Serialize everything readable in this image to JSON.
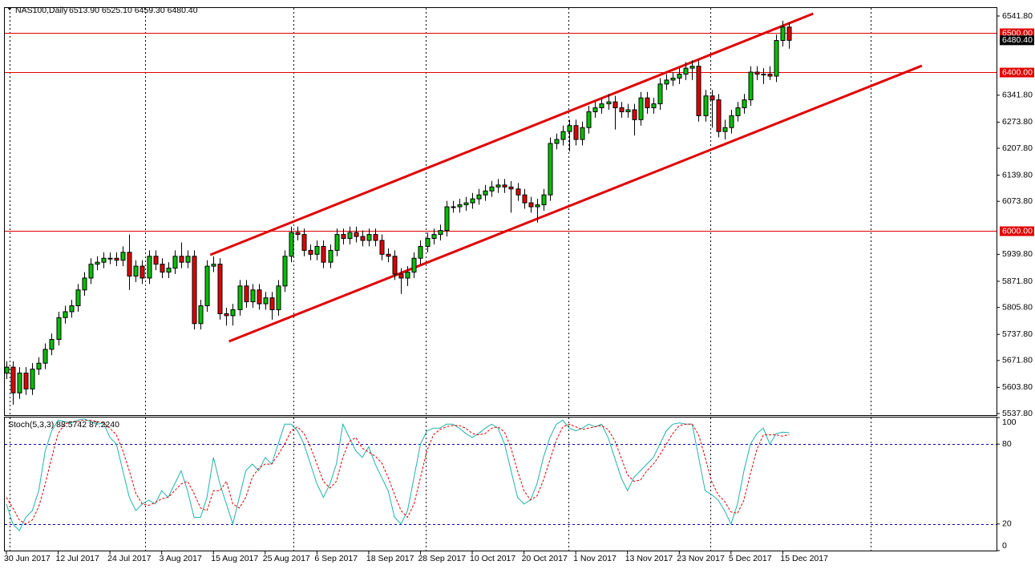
{
  "chart_data": [
    {
      "type": "candlestick",
      "symbol": "NAS100,Daily",
      "ohlc_label": "6513.90 6525.10 6459.30 6480.40",
      "up_color": "#00c000",
      "down_color": "#e00000",
      "categories": [
        "30 Jun 2017",
        null,
        null,
        null,
        null,
        null,
        null,
        null,
        "12 Jul 2017",
        null,
        null,
        null,
        null,
        null,
        null,
        null,
        "24 Jul 2017",
        null,
        null,
        null,
        null,
        null,
        null,
        null,
        "3 Aug 2017",
        null,
        null,
        null,
        null,
        null,
        null,
        null,
        "15 Aug 2017",
        null,
        null,
        null,
        null,
        null,
        null,
        null,
        "25 Aug 2017",
        null,
        null,
        null,
        null,
        null,
        null,
        null,
        "6 Sep 2017",
        null,
        null,
        null,
        null,
        null,
        null,
        null,
        "18 Sep 2017",
        null,
        null,
        null,
        null,
        null,
        null,
        null,
        "28 Sep 2017",
        null,
        null,
        null,
        null,
        null,
        null,
        null,
        "10 Oct 2017",
        null,
        null,
        null,
        null,
        null,
        null,
        null,
        "20 Oct 2017",
        null,
        null,
        null,
        null,
        null,
        null,
        null,
        "1 Nov 2017",
        null,
        null,
        null,
        null,
        null,
        null,
        null,
        "13 Nov 2017",
        null,
        null,
        null,
        null,
        null,
        null,
        null,
        "23 Nov 2017",
        null,
        null,
        null,
        null,
        null,
        null,
        null,
        "5 Dec 2017",
        null,
        null,
        null,
        null,
        null,
        null,
        null,
        "15 Dec 2017",
        null
      ],
      "open": [
        5640,
        5655,
        5590,
        5640,
        5600,
        5650,
        5665,
        5700,
        5725,
        5780,
        5795,
        5810,
        5850,
        5880,
        5915,
        5920,
        5930,
        5930,
        5925,
        5945,
        5885,
        5910,
        5880,
        5935,
        5915,
        5895,
        5905,
        5935,
        5920,
        5935,
        5765,
        5810,
        5910,
        5915,
        5790,
        5785,
        5800,
        5860,
        5820,
        5850,
        5815,
        5830,
        5800,
        5860,
        5935,
        5995,
        5990,
        5950,
        5940,
        5960,
        5920,
        5950,
        5990,
        5980,
        5995,
        5985,
        5975,
        5990,
        5975,
        5940,
        5935,
        5890,
        5880,
        5895,
        5930,
        5960,
        5980,
        5990,
        6000,
        6060,
        6060,
        6065,
        6070,
        6080,
        6090,
        6100,
        6110,
        6115,
        6110,
        6105,
        6090,
        6070,
        6060,
        6065,
        6090,
        6220,
        6230,
        6250,
        6265,
        6230,
        6260,
        6300,
        6310,
        6320,
        6325,
        6310,
        6300,
        6305,
        6280,
        6335,
        6310,
        6320,
        6370,
        6380,
        6385,
        6395,
        6410,
        6415,
        6290,
        6340,
        6330,
        6250,
        6260,
        6290,
        6310,
        6330,
        6400,
        6395,
        6395,
        6390,
        6480,
        6513.9
      ],
      "high": [
        5670,
        5670,
        5655,
        5655,
        5665,
        5680,
        5715,
        5740,
        5795,
        5810,
        5825,
        5865,
        5895,
        5930,
        5935,
        5945,
        5945,
        5945,
        5960,
        5990,
        5925,
        5925,
        5950,
        5950,
        5930,
        5920,
        5950,
        5970,
        5950,
        5950,
        5825,
        5925,
        5935,
        5930,
        5805,
        5815,
        5875,
        5875,
        5865,
        5865,
        5845,
        5845,
        5875,
        5950,
        6010,
        6010,
        6005,
        5965,
        5975,
        5975,
        5965,
        6005,
        6005,
        6010,
        6010,
        6000,
        6005,
        6005,
        5990,
        5955,
        5950,
        5905,
        5910,
        5945,
        5975,
        5995,
        6005,
        6015,
        6075,
        6075,
        6080,
        6085,
        6095,
        6105,
        6115,
        6125,
        6130,
        6130,
        6125,
        6120,
        6105,
        6085,
        6080,
        6105,
        6235,
        6245,
        6265,
        6280,
        6280,
        6275,
        6315,
        6325,
        6335,
        6345,
        6340,
        6325,
        6320,
        6320,
        6350,
        6350,
        6335,
        6385,
        6395,
        6400,
        6410,
        6425,
        6430,
        6430,
        6355,
        6355,
        6345,
        6280,
        6305,
        6325,
        6345,
        6415,
        6415,
        6410,
        6415,
        6495,
        6530,
        6525.1
      ],
      "low": [
        5625,
        5560,
        5575,
        5585,
        5585,
        5635,
        5650,
        5685,
        5710,
        5765,
        5780,
        5795,
        5835,
        5865,
        5900,
        5905,
        5915,
        5910,
        5910,
        5850,
        5870,
        5865,
        5865,
        5900,
        5880,
        5880,
        5890,
        5905,
        5905,
        5750,
        5750,
        5795,
        5895,
        5775,
        5760,
        5760,
        5785,
        5805,
        5805,
        5800,
        5800,
        5775,
        5785,
        5845,
        5920,
        5975,
        5935,
        5925,
        5925,
        5905,
        5905,
        5935,
        5965,
        5965,
        5970,
        5960,
        5960,
        5960,
        5925,
        5920,
        5875,
        5840,
        5860,
        5880,
        5915,
        5945,
        5965,
        5975,
        5985,
        6045,
        6045,
        6050,
        6055,
        6065,
        6075,
        6085,
        6095,
        6095,
        6045,
        6075,
        6055,
        6045,
        6020,
        6050,
        6075,
        6205,
        6215,
        6200,
        6215,
        6215,
        6245,
        6285,
        6295,
        6305,
        6255,
        6285,
        6285,
        6240,
        6265,
        6295,
        6295,
        6305,
        6355,
        6365,
        6370,
        6380,
        6380,
        6275,
        6275,
        6260,
        6235,
        6230,
        6245,
        6275,
        6295,
        6315,
        6380,
        6370,
        6380,
        6375,
        6465,
        6459.3
      ],
      "close": [
        5655,
        5590,
        5640,
        5600,
        5650,
        5665,
        5700,
        5725,
        5780,
        5795,
        5810,
        5850,
        5880,
        5915,
        5920,
        5930,
        5930,
        5925,
        5945,
        5885,
        5910,
        5880,
        5935,
        5915,
        5895,
        5905,
        5935,
        5920,
        5935,
        5765,
        5810,
        5910,
        5915,
        5790,
        5785,
        5800,
        5860,
        5820,
        5850,
        5815,
        5830,
        5800,
        5860,
        5935,
        5995,
        5990,
        5950,
        5940,
        5960,
        5920,
        5950,
        5990,
        5980,
        5995,
        5985,
        5975,
        5990,
        5975,
        5940,
        5935,
        5890,
        5880,
        5895,
        5930,
        5960,
        5980,
        5990,
        6000,
        6060,
        6060,
        6065,
        6070,
        6080,
        6090,
        6100,
        6110,
        6115,
        6110,
        6105,
        6090,
        6070,
        6060,
        6065,
        6090,
        6220,
        6230,
        6250,
        6265,
        6230,
        6260,
        6300,
        6310,
        6320,
        6325,
        6310,
        6300,
        6305,
        6280,
        6335,
        6310,
        6320,
        6370,
        6380,
        6385,
        6395,
        6410,
        6415,
        6290,
        6340,
        6330,
        6250,
        6260,
        6290,
        6310,
        6330,
        6400,
        6395,
        6395,
        6390,
        6480,
        6514,
        6480.4
      ],
      "last_price_label": "6480.40",
      "ylim": [
        5533.8,
        6562
      ],
      "yticks": [
        {
          "value": 6541.8,
          "label": "6541.80"
        },
        {
          "value": 6341.8,
          "label": "6341.80"
        },
        {
          "value": 6273.8,
          "label": "6273.80"
        },
        {
          "value": 6207.8,
          "label": "6207.80"
        },
        {
          "value": 6139.8,
          "label": "6139.80"
        },
        {
          "value": 6073.8,
          "label": "6073.80"
        },
        {
          "value": 5939.8,
          "label": "5939.80"
        },
        {
          "value": 5871.8,
          "label": "5871.80"
        },
        {
          "value": 5805.8,
          "label": "5805.80"
        },
        {
          "value": 5737.8,
          "label": "5737.80"
        },
        {
          "value": 5671.8,
          "label": "5671.80"
        },
        {
          "value": 5603.8,
          "label": "5603.80"
        },
        {
          "value": 5537.8,
          "label": "5537.80"
        }
      ],
      "levels": [
        {
          "value": 6500,
          "label": "6500.00"
        },
        {
          "value": 6400,
          "label": "6400.00"
        },
        {
          "value": 6000,
          "label": "6000.00"
        }
      ],
      "level_color": "#e00000",
      "trendlines": [
        {
          "x": [
            31.5,
            124.7
          ],
          "y": [
            5938.6,
            6547.9
          ]
        },
        {
          "x": [
            34.4,
            141.5
          ],
          "y": [
            5720,
            6416.3
          ]
        }
      ],
      "trendline_color": "#e00000"
    },
    {
      "type": "line",
      "title": "Stoch(5,3,3) 88.5742 87.2240",
      "series": [
        {
          "name": "Main",
          "color": "#20b2aa",
          "dashed": false,
          "values": [
            35,
            20,
            15,
            25,
            30,
            45,
            75,
            90,
            98,
            97,
            96,
            98,
            99,
            97,
            95,
            96,
            85,
            80,
            60,
            40,
            30,
            35,
            38,
            35,
            45,
            40,
            50,
            60,
            45,
            25,
            25,
            40,
            70,
            50,
            35,
            20,
            40,
            60,
            65,
            60,
            70,
            65,
            80,
            95,
            95,
            90,
            80,
            65,
            50,
            40,
            50,
            65,
            95,
            85,
            75,
            70,
            78,
            65,
            55,
            45,
            25,
            20,
            30,
            55,
            80,
            90,
            92,
            92,
            95,
            95,
            92,
            88,
            85,
            88,
            92,
            95,
            92,
            80,
            60,
            40,
            35,
            38,
            50,
            70,
            85,
            95,
            98,
            92,
            90,
            92,
            95,
            93,
            95,
            85,
            70,
            55,
            45,
            55,
            60,
            65,
            70,
            80,
            90,
            95,
            96,
            95,
            95,
            70,
            45,
            42,
            38,
            30,
            20,
            35,
            60,
            80,
            88,
            92,
            80,
            88,
            89,
            88.5742
          ]
        },
        {
          "name": "Signal",
          "color": "#e00000",
          "dashed": true,
          "values": [
            40,
            32,
            23,
            20,
            23,
            33,
            50,
            70,
            88,
            95,
            97,
            97,
            98,
            98,
            97,
            96,
            92,
            87,
            75,
            60,
            43,
            35,
            34,
            36,
            39,
            40,
            45,
            50,
            52,
            43,
            32,
            30,
            45,
            45,
            52,
            35,
            32,
            40,
            55,
            62,
            65,
            65,
            72,
            80,
            90,
            93,
            88,
            78,
            65,
            52,
            47,
            52,
            70,
            82,
            85,
            77,
            74,
            71,
            66,
            55,
            42,
            30,
            25,
            35,
            55,
            75,
            87,
            91,
            93,
            94,
            94,
            92,
            88,
            87,
            88,
            92,
            93,
            89,
            77,
            60,
            45,
            38,
            41,
            53,
            68,
            83,
            93,
            95,
            93,
            91,
            92,
            93,
            94,
            91,
            83,
            70,
            57,
            52,
            53,
            60,
            65,
            72,
            80,
            88,
            94,
            95,
            95,
            87,
            70,
            52,
            42,
            37,
            29,
            28,
            38,
            58,
            76,
            87,
            87,
            87,
            86,
            87.224
          ]
        }
      ],
      "ylim": [
        0,
        100
      ],
      "yticks": [
        0,
        20,
        80,
        100
      ],
      "levels": [
        20,
        80
      ],
      "level_color": "#0000c0"
    }
  ]
}
